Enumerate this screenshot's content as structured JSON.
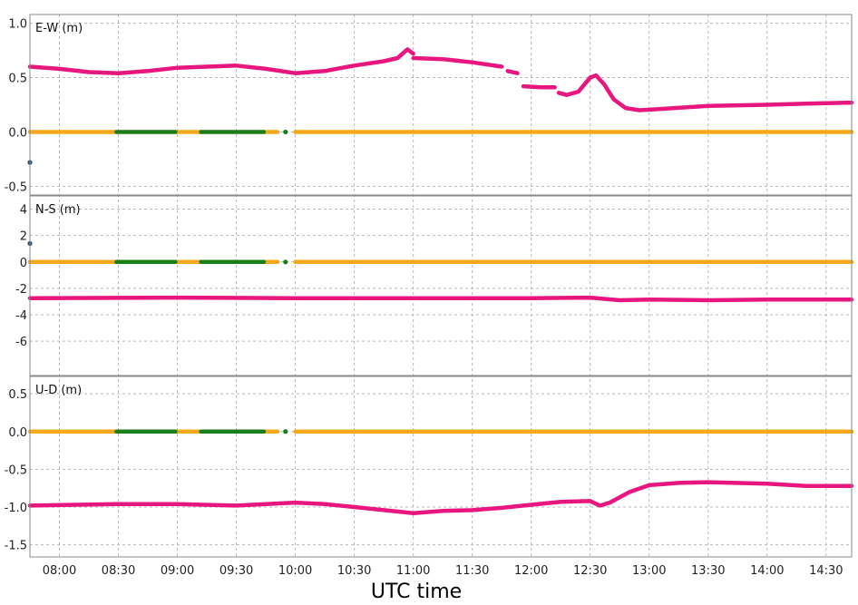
{
  "colors": {
    "pink": "#e8177f",
    "orange": "#f5a81c",
    "green": "#1a7f1a",
    "blue": "#1f4e79",
    "grid": "#b8b8b8",
    "axis": "#8a8a8a"
  },
  "chart_data": {
    "type": "line",
    "xlabel": "UTC time",
    "x_range": [
      "07:45",
      "14:43"
    ],
    "x_ticks": [
      "08:00",
      "08:30",
      "09:00",
      "09:30",
      "10:00",
      "10:30",
      "11:00",
      "11:30",
      "12:00",
      "12:30",
      "13:00",
      "13:30",
      "14:00",
      "14:30"
    ],
    "grid": true,
    "panels": [
      {
        "label": "E-W (m)",
        "ylim": [
          -0.58,
          1.08
        ],
        "yticks": [
          1.0,
          0.5,
          0.0,
          -0.5
        ],
        "ytick_labels": [
          "1.0",
          "0.5",
          "0.0",
          "-0.5"
        ],
        "series": [
          {
            "color": "pink",
            "segments": [
              [
                [
                  "07:45",
                  0.6
                ],
                [
                  "08:00",
                  0.58
                ],
                [
                  "08:15",
                  0.55
                ],
                [
                  "08:30",
                  0.54
                ],
                [
                  "08:45",
                  0.56
                ],
                [
                  "09:00",
                  0.59
                ],
                [
                  "09:15",
                  0.6
                ],
                [
                  "09:30",
                  0.61
                ],
                [
                  "09:45",
                  0.58
                ],
                [
                  "10:00",
                  0.54
                ],
                [
                  "10:15",
                  0.56
                ],
                [
                  "10:30",
                  0.61
                ],
                [
                  "10:45",
                  0.65
                ],
                [
                  "10:52",
                  0.68
                ],
                [
                  "10:57",
                  0.76
                ],
                [
                  "11:00",
                  0.72
                ]
              ],
              [
                [
                  "11:00",
                  0.68
                ],
                [
                  "11:15",
                  0.67
                ],
                [
                  "11:30",
                  0.64
                ],
                [
                  "11:45",
                  0.6
                ]
              ],
              [
                [
                  "11:48",
                  0.56
                ],
                [
                  "11:53",
                  0.54
                ]
              ],
              [
                [
                  "11:56",
                  0.42
                ],
                [
                  "12:05",
                  0.41
                ],
                [
                  "12:12",
                  0.41
                ]
              ],
              [
                [
                  "12:14",
                  0.36
                ],
                [
                  "12:18",
                  0.34
                ],
                [
                  "12:24",
                  0.37
                ],
                [
                  "12:30",
                  0.5
                ],
                [
                  "12:33",
                  0.52
                ],
                [
                  "12:37",
                  0.44
                ],
                [
                  "12:42",
                  0.3
                ],
                [
                  "12:48",
                  0.22
                ],
                [
                  "12:55",
                  0.2
                ],
                [
                  "13:05",
                  0.21
                ],
                [
                  "13:30",
                  0.24
                ],
                [
                  "14:00",
                  0.25
                ],
                [
                  "14:20",
                  0.26
                ],
                [
                  "14:43",
                  0.27
                ]
              ]
            ]
          },
          {
            "color": "orange",
            "segments": [
              [
                [
                  "07:45",
                  0.0
                ],
                [
                  "08:29",
                  0.0
                ]
              ],
              [
                [
                  "08:59",
                  0.0
                ],
                [
                  "09:12",
                  0.0
                ]
              ],
              [
                [
                  "09:44",
                  0.0
                ],
                [
                  "09:51",
                  0.0
                ]
              ],
              [
                [
                  "10:00",
                  0.0
                ],
                [
                  "11:30",
                  0.0
                ],
                [
                  "12:30",
                  0.0
                ],
                [
                  "14:43",
                  0.0
                ]
              ]
            ]
          },
          {
            "color": "green",
            "segments": [
              [
                [
                  "08:29",
                  0.0
                ],
                [
                  "08:59",
                  0.0
                ]
              ],
              [
                [
                  "09:12",
                  0.0
                ],
                [
                  "09:44",
                  0.0
                ]
              ]
            ]
          }
        ],
        "points": [
          {
            "color": "green",
            "x": "09:55",
            "y": 0.0
          },
          {
            "color": "blue",
            "x": "07:45",
            "y": -0.28
          }
        ]
      },
      {
        "label": "N-S (m)",
        "ylim": [
          -8.6,
          5.0
        ],
        "yticks": [
          4,
          2,
          0,
          -2,
          -4,
          -6
        ],
        "ytick_labels": [
          "4",
          "2",
          "0",
          "-2",
          "-4",
          "-6"
        ],
        "series": [
          {
            "color": "pink",
            "segments": [
              [
                [
                  "07:45",
                  -2.75
                ],
                [
                  "09:00",
                  -2.7
                ],
                [
                  "10:00",
                  -2.75
                ],
                [
                  "11:00",
                  -2.75
                ],
                [
                  "12:00",
                  -2.75
                ],
                [
                  "12:30",
                  -2.7
                ],
                [
                  "12:45",
                  -2.9
                ],
                [
                  "13:00",
                  -2.85
                ],
                [
                  "13:30",
                  -2.9
                ],
                [
                  "14:00",
                  -2.85
                ],
                [
                  "14:43",
                  -2.85
                ]
              ]
            ]
          },
          {
            "color": "orange",
            "segments": [
              [
                [
                  "07:45",
                  0.0
                ],
                [
                  "08:29",
                  0.0
                ]
              ],
              [
                [
                  "08:59",
                  0.0
                ],
                [
                  "09:12",
                  0.0
                ]
              ],
              [
                [
                  "09:44",
                  0.0
                ],
                [
                  "09:51",
                  0.0
                ]
              ],
              [
                [
                  "10:00",
                  0.0
                ],
                [
                  "14:43",
                  0.0
                ]
              ]
            ]
          },
          {
            "color": "green",
            "segments": [
              [
                [
                  "08:29",
                  0.0
                ],
                [
                  "08:59",
                  0.0
                ]
              ],
              [
                [
                  "09:12",
                  0.0
                ],
                [
                  "09:44",
                  0.0
                ]
              ]
            ]
          }
        ],
        "points": [
          {
            "color": "green",
            "x": "09:55",
            "y": 0.0
          },
          {
            "color": "blue",
            "x": "07:45",
            "y": 1.4
          }
        ]
      },
      {
        "label": "U-D (m)",
        "ylim": [
          -1.66,
          0.73
        ],
        "yticks": [
          0.5,
          0.0,
          -0.5,
          -1.0,
          -1.5
        ],
        "ytick_labels": [
          "0.5",
          "0.0",
          "-0.5",
          "-1.0",
          "-1.5"
        ],
        "series": [
          {
            "color": "pink",
            "segments": [
              [
                [
                  "07:45",
                  -0.98
                ],
                [
                  "08:30",
                  -0.96
                ],
                [
                  "09:00",
                  -0.96
                ],
                [
                  "09:30",
                  -0.98
                ],
                [
                  "10:00",
                  -0.94
                ],
                [
                  "10:15",
                  -0.96
                ],
                [
                  "10:30",
                  -1.0
                ],
                [
                  "10:45",
                  -1.04
                ],
                [
                  "11:00",
                  -1.08
                ],
                [
                  "11:15",
                  -1.05
                ],
                [
                  "11:30",
                  -1.04
                ],
                [
                  "11:45",
                  -1.01
                ],
                [
                  "12:00",
                  -0.97
                ],
                [
                  "12:15",
                  -0.93
                ],
                [
                  "12:30",
                  -0.92
                ],
                [
                  "12:35",
                  -0.98
                ],
                [
                  "12:40",
                  -0.94
                ],
                [
                  "12:50",
                  -0.8
                ],
                [
                  "13:00",
                  -0.71
                ],
                [
                  "13:15",
                  -0.68
                ],
                [
                  "13:30",
                  -0.67
                ],
                [
                  "14:00",
                  -0.69
                ],
                [
                  "14:20",
                  -0.72
                ],
                [
                  "14:43",
                  -0.72
                ]
              ]
            ]
          },
          {
            "color": "orange",
            "segments": [
              [
                [
                  "07:45",
                  0.0
                ],
                [
                  "08:29",
                  0.0
                ]
              ],
              [
                [
                  "08:59",
                  0.0
                ],
                [
                  "09:12",
                  0.0
                ]
              ],
              [
                [
                  "09:44",
                  0.0
                ],
                [
                  "09:51",
                  0.0
                ]
              ],
              [
                [
                  "10:00",
                  0.0
                ],
                [
                  "14:43",
                  0.0
                ]
              ]
            ]
          },
          {
            "color": "green",
            "segments": [
              [
                [
                  "08:29",
                  0.0
                ],
                [
                  "08:59",
                  0.0
                ]
              ],
              [
                [
                  "09:12",
                  0.0
                ],
                [
                  "09:44",
                  0.0
                ]
              ]
            ]
          }
        ],
        "points": [
          {
            "color": "green",
            "x": "09:55",
            "y": 0.0
          }
        ]
      }
    ]
  }
}
